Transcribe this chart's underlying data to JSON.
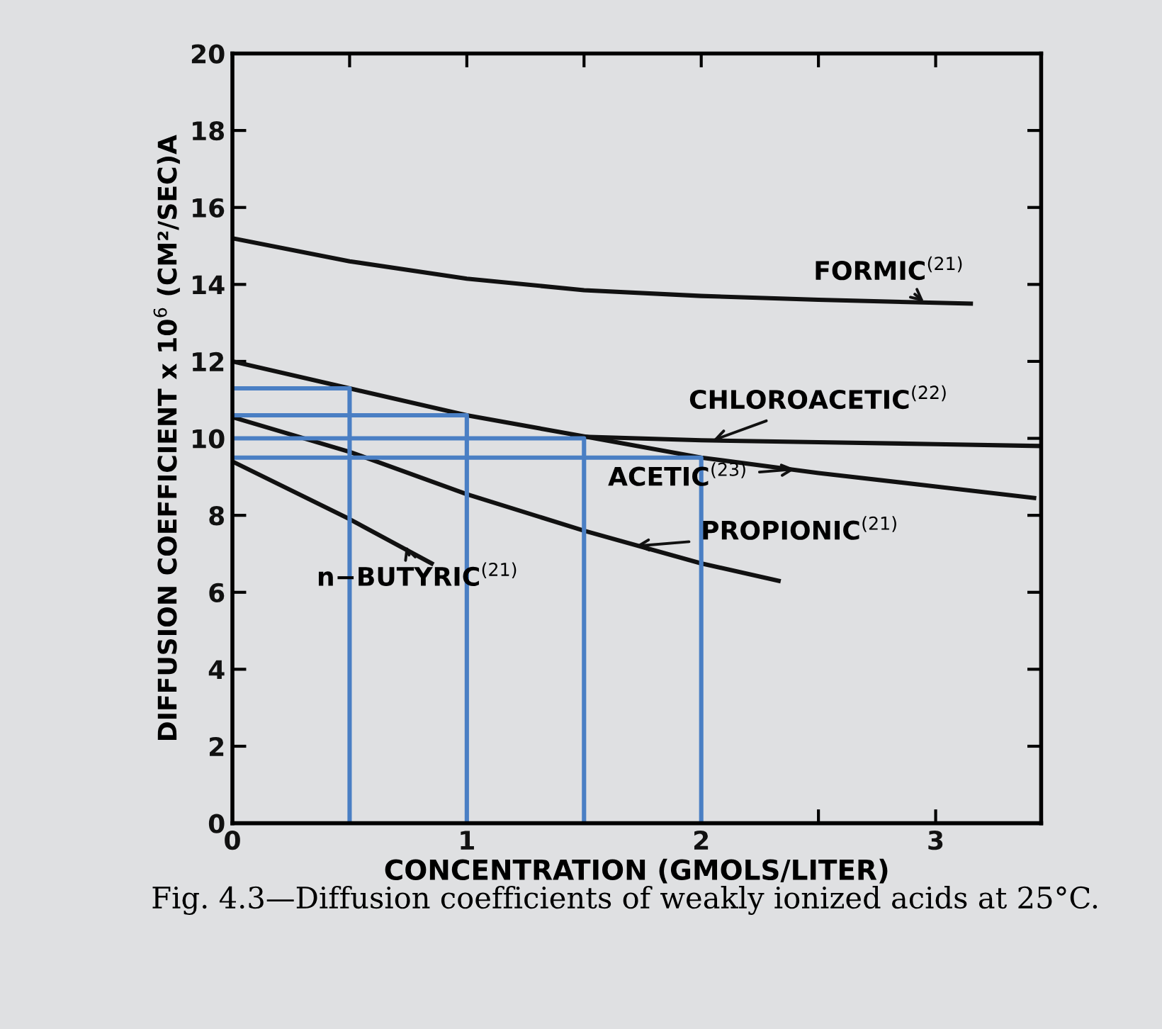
{
  "chart_data": {
    "type": "line",
    "xlabel": "CONCENTRATION (GMOLS/LITER)",
    "ylabel": "DIFFUSION COEFFICIENT x 10$^{6}$ (CM²/SEC)A",
    "xlim": [
      0,
      3.45
    ],
    "ylim": [
      0,
      20
    ],
    "xticks": [
      0,
      {
        "value": 0.5,
        "label": null
      },
      1,
      {
        "value": 1.5,
        "label": null
      },
      2,
      {
        "value": 2.5,
        "label": null
      },
      3
    ],
    "yticks": [
      0,
      2,
      4,
      6,
      8,
      10,
      12,
      14,
      16,
      18,
      20
    ],
    "grid": false,
    "legend": false,
    "marker": "none",
    "line_style": "solid",
    "series": [
      {
        "color": "#111111",
        "x": [
          0,
          0.5,
          1,
          1.5,
          2,
          2.5,
          3.15
        ],
        "values": [
          15.2,
          14.6,
          14.15,
          13.85,
          13.7,
          13.6,
          13.5
        ]
      },
      {
        "color": "#111111",
        "x": [
          1.45,
          2,
          2.5,
          3,
          3.45
        ],
        "values": [
          10.05,
          9.95,
          9.9,
          9.85,
          9.8
        ]
      },
      {
        "color": "#111111",
        "x": [
          0,
          0.5,
          1,
          1.5,
          2,
          2.5,
          3,
          3.42
        ],
        "values": [
          12.0,
          11.3,
          10.6,
          10.05,
          9.5,
          9.1,
          8.75,
          8.45
        ]
      },
      {
        "color": "#111111",
        "x": [
          0,
          0.5,
          1,
          1.5,
          2,
          2.33
        ],
        "values": [
          10.55,
          9.65,
          8.55,
          7.6,
          6.75,
          6.3
        ]
      },
      {
        "color": "#111111",
        "x": [
          0,
          0.5,
          0.85
        ],
        "values": [
          9.4,
          7.9,
          6.75
        ]
      },
      {
        "color": "#4a7fc4",
        "x": [
          0,
          0.5,
          0.5
        ],
        "values": [
          11.3,
          11.3,
          0
        ]
      },
      {
        "color": "#4a7fc4",
        "x": [
          0,
          1,
          1
        ],
        "values": [
          10.6,
          10.6,
          0
        ]
      },
      {
        "color": "#4a7fc4",
        "x": [
          0,
          1.5,
          1.5
        ],
        "values": [
          10.0,
          10.0,
          0
        ]
      },
      {
        "color": "#4a7fc4",
        "x": [
          0,
          2,
          2
        ],
        "values": [
          9.5,
          9.5,
          0
        ]
      }
    ],
    "annotations": [
      {
        "text": "FORMIC$^{(21)}$",
        "x": 2.95,
        "y": 13.55
      },
      {
        "text": "CHLOROACETIC$^{(22)}$",
        "x": 2.05,
        "y": 9.95
      },
      {
        "text": "ACETIC$^{(23)}$",
        "x": 2.4,
        "y": 9.2
      },
      {
        "text": "PROPIONIC$^{(21)}$",
        "x": 1.72,
        "y": 7.2
      },
      {
        "text": "n−BUTYRIC$^{(21)}$",
        "x": 0.74,
        "y": 7.2
      },
      "Fig. 4.3—Diffusion coefficients of weakly ionized acids at 25°C."
    ]
  }
}
